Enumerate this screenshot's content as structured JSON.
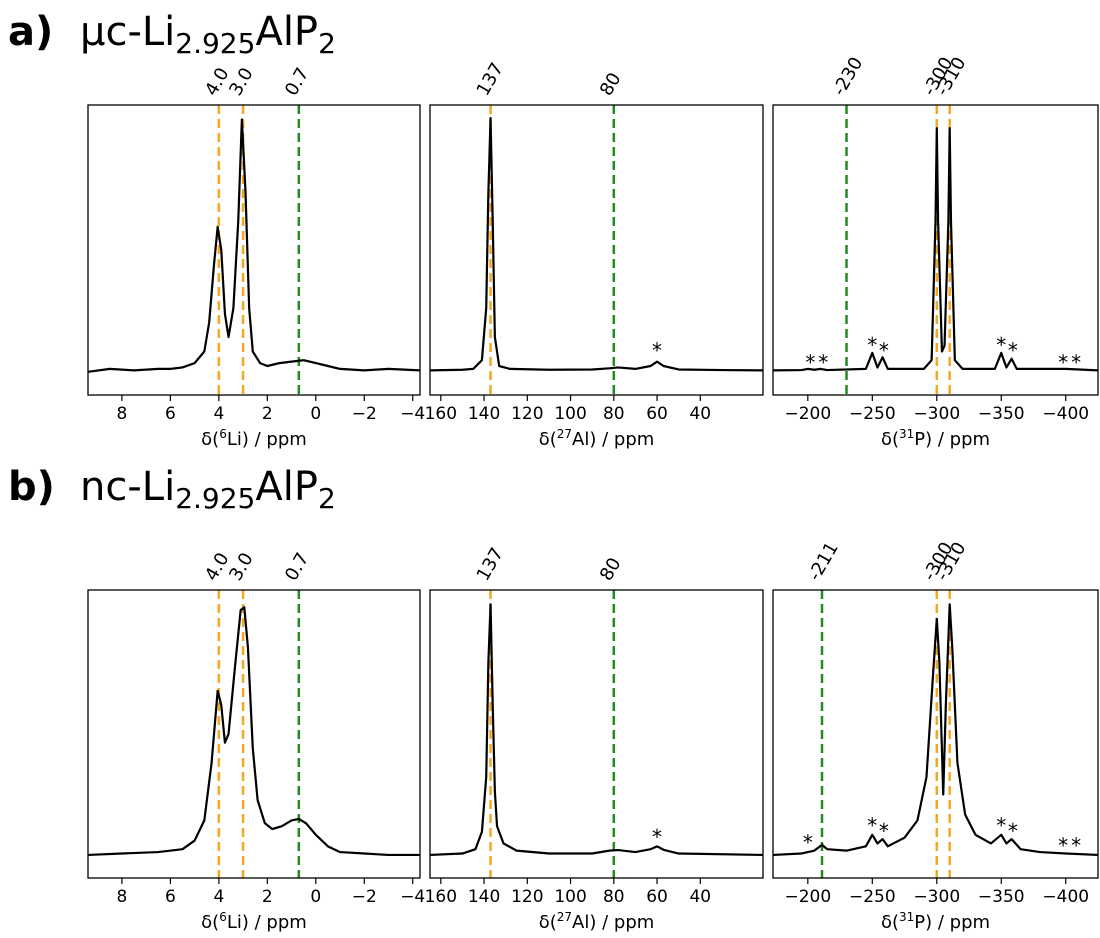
{
  "panels": [
    {
      "label": "a)",
      "title_parts": [
        "μc-Li",
        "2.925",
        "AlP",
        "2"
      ]
    },
    {
      "label": "b)",
      "title_parts": [
        "nc-Li",
        "2.925",
        "AlP",
        "2"
      ]
    }
  ],
  "chart_data": [
    {
      "type": "line",
      "xlabel_parts": [
        "δ(",
        "6",
        "Li) / ppm"
      ],
      "xlim": [
        9.4,
        -4.3
      ],
      "ylim": [
        0,
        1
      ],
      "xticks": [
        8,
        6,
        4,
        2,
        0,
        {
          "value": -2,
          "label": "−2"
        },
        {
          "value": -4,
          "label": "−4"
        }
      ],
      "ref_lines": [
        {
          "value": 4,
          "label": "4.0",
          "color": "#f5a623"
        },
        {
          "value": 3,
          "label": "3.0",
          "color": "#f5a623"
        },
        {
          "value": 0.7,
          "color": "#228b22"
        }
      ],
      "x": [
        9.4,
        8.5,
        7.5,
        6.5,
        6,
        5.5,
        5,
        4.6,
        4.4,
        4.2,
        4.05,
        3.9,
        3.75,
        3.6,
        3.4,
        3.2,
        3.05,
        2.9,
        2.75,
        2.6,
        2.3,
        2,
        1.5,
        1,
        0.5,
        0,
        -0.5,
        -1,
        -2,
        -3,
        -4.3
      ],
      "series": [
        {
          "color": "#000000",
          "values": [
            0.08,
            0.09,
            0.085,
            0.09,
            0.09,
            0.095,
            0.11,
            0.15,
            0.25,
            0.45,
            0.58,
            0.5,
            0.28,
            0.2,
            0.3,
            0.6,
            0.95,
            0.7,
            0.3,
            0.15,
            0.11,
            0.1,
            0.11,
            0.115,
            0.12,
            0.11,
            0.1,
            0.09,
            0.085,
            0.09,
            0.085
          ]
        }
      ],
      "annotations": []
    },
    {
      "type": "line",
      "xlabel_parts": [
        "δ(",
        "27",
        "Al) / ppm"
      ],
      "xlim": [
        165,
        11
      ],
      "ylim": [
        0,
        1
      ],
      "xticks": [
        160,
        140,
        120,
        100,
        80,
        60,
        40
      ],
      "ref_lines": [
        {
          "value": 137,
          "color": "#f5a623"
        },
        {
          "value": 80,
          "color": "#228b22"
        }
      ],
      "x": [
        165,
        150,
        145,
        141,
        139,
        138,
        137,
        136,
        135,
        133,
        128,
        110,
        90,
        82,
        78,
        70,
        63,
        60,
        57,
        50,
        30,
        11
      ],
      "series": [
        {
          "color": "#000000",
          "values": [
            0.085,
            0.087,
            0.09,
            0.12,
            0.3,
            0.7,
            0.955,
            0.6,
            0.2,
            0.1,
            0.09,
            0.087,
            0.088,
            0.092,
            0.095,
            0.09,
            0.1,
            0.115,
            0.1,
            0.088,
            0.086,
            0.085
          ]
        }
      ],
      "annotations": [
        {
          "x": 60,
          "y": 0.17,
          "text": "*"
        }
      ]
    },
    {
      "type": "line",
      "xlabel_parts": [
        "δ(",
        "31",
        "P) / ppm"
      ],
      "xlim": [
        -173,
        -425
      ],
      "ylim": [
        0,
        1
      ],
      "xticks": [
        {
          "value": -200,
          "label": "−200"
        },
        {
          "value": -250,
          "label": "−250"
        },
        {
          "value": -300,
          "label": "−300"
        },
        {
          "value": -350,
          "label": "−350"
        },
        {
          "value": -400,
          "label": "−400"
        }
      ],
      "ref_lines": [
        {
          "value": -230,
          "color": "#228b22"
        },
        {
          "value": -300,
          "color": "#f5a623"
        },
        {
          "value": -310,
          "color": "#f5a623"
        }
      ],
      "x": [
        -173,
        -195,
        -200,
        -205,
        -210,
        -215,
        -245,
        -250,
        -254,
        -258,
        -262,
        -290,
        -296,
        -299,
        -300,
        -301,
        -304,
        -306,
        -309,
        -310,
        -311,
        -314,
        -320,
        -345,
        -350,
        -354,
        -358,
        -362,
        -400,
        -425
      ],
      "series": [
        {
          "color": "#000000",
          "values": [
            0.085,
            0.086,
            0.09,
            0.087,
            0.09,
            0.086,
            0.09,
            0.145,
            0.095,
            0.13,
            0.09,
            0.09,
            0.12,
            0.6,
            0.92,
            0.6,
            0.15,
            0.17,
            0.6,
            0.92,
            0.6,
            0.12,
            0.09,
            0.09,
            0.145,
            0.095,
            0.125,
            0.09,
            0.09,
            0.085
          ]
        }
      ],
      "annotations": [
        {
          "x": -202,
          "y": 0.13,
          "text": "*"
        },
        {
          "x": -212,
          "y": 0.13,
          "text": "*"
        },
        {
          "x": -250,
          "y": 0.19,
          "text": "*"
        },
        {
          "x": -259,
          "y": 0.17,
          "text": "*"
        },
        {
          "x": -350,
          "y": 0.19,
          "text": "*"
        },
        {
          "x": -359,
          "y": 0.17,
          "text": "*"
        },
        {
          "x": -398,
          "y": 0.13,
          "text": "*"
        },
        {
          "x": -408,
          "y": 0.13,
          "text": "*"
        }
      ]
    },
    {
      "type": "line",
      "xlabel_parts": [
        "δ(",
        "6",
        "Li) / ppm"
      ],
      "xlim": [
        9.4,
        -4.3
      ],
      "ylim": [
        0,
        1
      ],
      "xticks": [
        8,
        6,
        4,
        2,
        0,
        {
          "value": -2,
          "label": "−2"
        },
        {
          "value": -4,
          "label": "−4"
        }
      ],
      "ref_lines": [
        {
          "value": 4,
          "label": "4.0",
          "color": "#f5a623"
        },
        {
          "value": 3,
          "label": "3.0",
          "color": "#f5a623"
        },
        {
          "value": 0.7,
          "color": "#228b22"
        }
      ],
      "x": [
        9.4,
        8,
        6.5,
        5.5,
        5,
        4.6,
        4.3,
        4.05,
        3.9,
        3.75,
        3.6,
        3.35,
        3.1,
        2.95,
        2.8,
        2.6,
        2.4,
        2.1,
        1.8,
        1.4,
        1,
        0.7,
        0.4,
        0,
        -0.5,
        -1,
        -2,
        -3,
        -4.3
      ],
      "series": [
        {
          "color": "#000000",
          "values": [
            0.08,
            0.085,
            0.09,
            0.1,
            0.13,
            0.2,
            0.4,
            0.65,
            0.6,
            0.47,
            0.5,
            0.72,
            0.93,
            0.94,
            0.8,
            0.45,
            0.27,
            0.19,
            0.17,
            0.18,
            0.2,
            0.205,
            0.19,
            0.15,
            0.11,
            0.09,
            0.085,
            0.08,
            0.08
          ]
        }
      ],
      "annotations": []
    },
    {
      "type": "line",
      "xlabel_parts": [
        "δ(",
        "27",
        "Al) / ppm"
      ],
      "xlim": [
        165,
        11
      ],
      "ylim": [
        0,
        1
      ],
      "xticks": [
        160,
        140,
        120,
        100,
        80,
        60,
        40
      ],
      "ref_lines": [
        {
          "value": 137,
          "color": "#f5a623"
        },
        {
          "value": 80,
          "color": "#228b22"
        }
      ],
      "x": [
        165,
        150,
        144,
        141,
        139,
        138,
        137,
        136,
        135,
        134,
        131,
        125,
        110,
        90,
        82,
        78,
        70,
        63,
        60,
        57,
        50,
        11
      ],
      "series": [
        {
          "color": "#000000",
          "values": [
            0.08,
            0.085,
            0.1,
            0.16,
            0.35,
            0.75,
            0.95,
            0.6,
            0.3,
            0.18,
            0.12,
            0.095,
            0.085,
            0.085,
            0.095,
            0.097,
            0.09,
            0.1,
            0.11,
            0.098,
            0.085,
            0.08
          ]
        }
      ],
      "annotations": [
        {
          "x": 60,
          "y": 0.16,
          "text": "*"
        }
      ]
    },
    {
      "type": "line",
      "xlabel_parts": [
        "δ(",
        "31",
        "P) / ppm"
      ],
      "xlim": [
        -173,
        -425
      ],
      "ylim": [
        0,
        1
      ],
      "xticks": [
        {
          "value": -200,
          "label": "−200"
        },
        {
          "value": -250,
          "label": "−250"
        },
        {
          "value": -300,
          "label": "−300"
        },
        {
          "value": -350,
          "label": "−350"
        },
        {
          "value": -400,
          "label": "−400"
        }
      ],
      "ref_lines": [
        {
          "value": -211,
          "color": "#228b22"
        },
        {
          "value": -300,
          "color": "#f5a623"
        },
        {
          "value": -310,
          "color": "#f5a623"
        }
      ],
      "x": [
        -173,
        -195,
        -200,
        -205,
        -211,
        -215,
        -230,
        -245,
        -250,
        -254,
        -258,
        -262,
        -275,
        -285,
        -292,
        -297,
        -300,
        -302,
        -305,
        -307,
        -310,
        -312,
        -316,
        -322,
        -330,
        -342,
        -350,
        -354,
        -358,
        -365,
        -380,
        -400,
        -425
      ],
      "series": [
        {
          "color": "#000000",
          "values": [
            0.08,
            0.085,
            0.09,
            0.095,
            0.115,
            0.1,
            0.095,
            0.11,
            0.15,
            0.12,
            0.135,
            0.11,
            0.14,
            0.2,
            0.35,
            0.7,
            0.9,
            0.75,
            0.29,
            0.6,
            0.95,
            0.8,
            0.4,
            0.22,
            0.15,
            0.12,
            0.15,
            0.12,
            0.135,
            0.1,
            0.09,
            0.085,
            0.08
          ]
        }
      ],
      "annotations": [
        {
          "x": -200,
          "y": 0.14,
          "text": "*"
        },
        {
          "x": -250,
          "y": 0.2,
          "text": "*"
        },
        {
          "x": -259,
          "y": 0.18,
          "text": "*"
        },
        {
          "x": -350,
          "y": 0.2,
          "text": "*"
        },
        {
          "x": -359,
          "y": 0.18,
          "text": "*"
        },
        {
          "x": -398,
          "y": 0.13,
          "text": "*"
        },
        {
          "x": -408,
          "y": 0.13,
          "text": "*"
        }
      ]
    }
  ]
}
